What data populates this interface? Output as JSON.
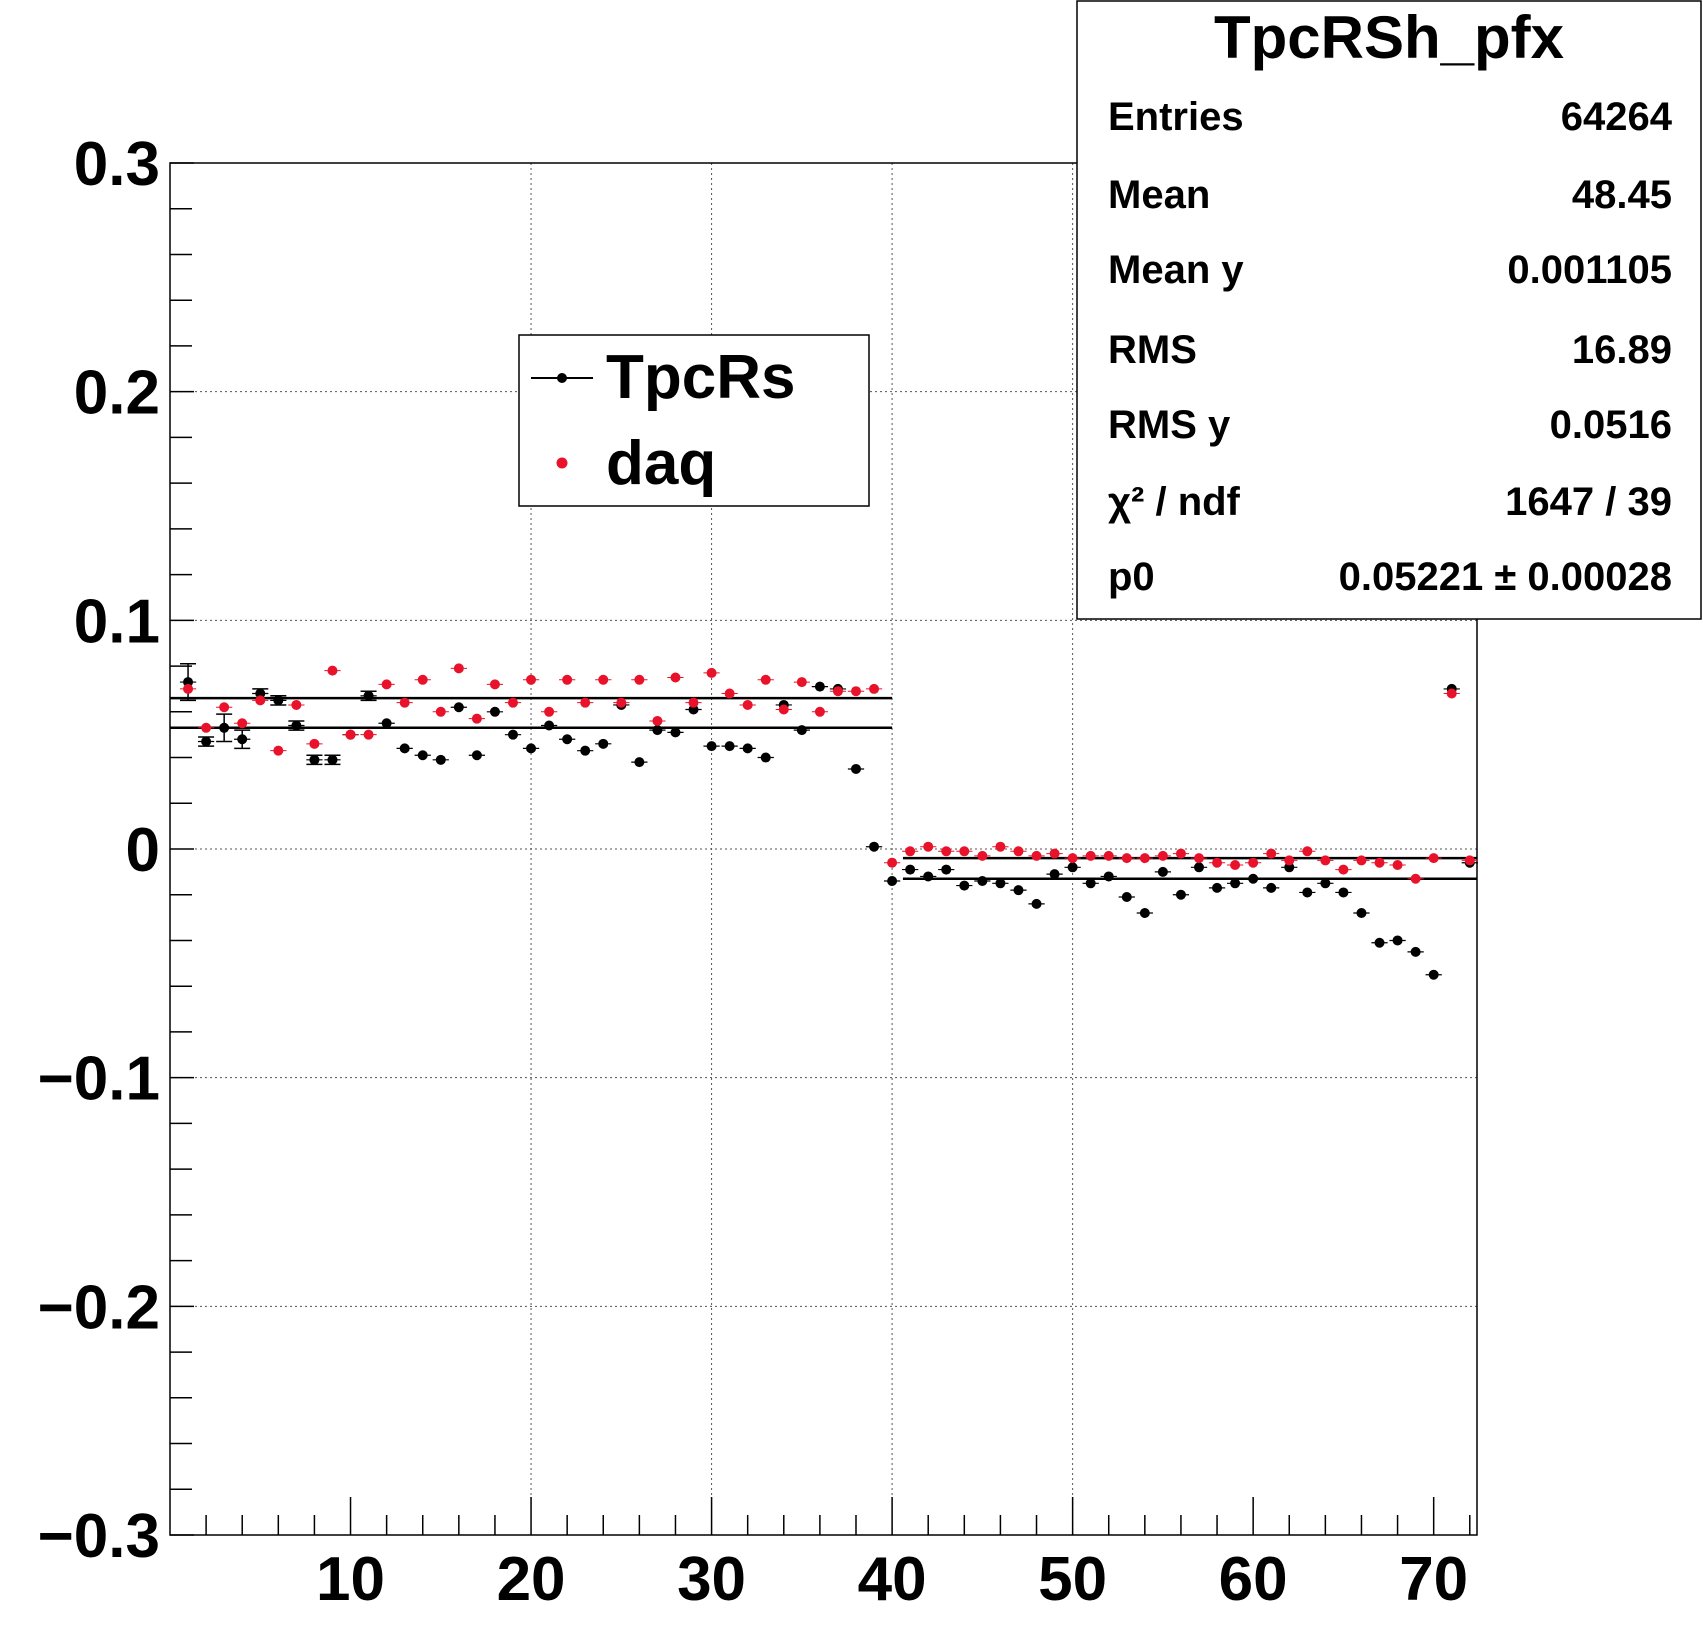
{
  "chart_data": {
    "type": "scatter",
    "title": "",
    "xlabel": "",
    "ylabel": "",
    "xlim": [
      0,
      72.4
    ],
    "ylim": [
      -0.3,
      0.3
    ],
    "grid": true,
    "x_tick_labels": [
      "10",
      "20",
      "30",
      "40",
      "50",
      "60",
      "70"
    ],
    "y_tick_labels": [
      "0.3",
      "0.2",
      "0.1",
      "0",
      "−0.1",
      "−0.2",
      "−0.3"
    ],
    "legend": {
      "placement": "top-center",
      "entries": [
        "TpcRs",
        "daq"
      ]
    },
    "stats": {
      "title": "TpcRSh_pfx",
      "rows": [
        {
          "label": "Entries",
          "value": "64264"
        },
        {
          "label": "Mean",
          "value": "48.45"
        },
        {
          "label": "Mean y",
          "value": "0.001105"
        },
        {
          "label": "RMS",
          "value": "16.89"
        },
        {
          "label": "RMS y",
          "value": "0.0516"
        },
        {
          "label": "χ² / ndf",
          "value": "1647 / 39"
        },
        {
          "label": "p0",
          "value": "0.05221 ± 0.00028"
        }
      ]
    },
    "series": [
      {
        "name": "TpcRs",
        "color": "#000000",
        "x": [
          1,
          2,
          3,
          4,
          5,
          6,
          7,
          8,
          9,
          10,
          11,
          12,
          13,
          14,
          15,
          16,
          17,
          18,
          19,
          20,
          21,
          22,
          23,
          24,
          25,
          26,
          27,
          28,
          29,
          30,
          31,
          32,
          33,
          34,
          35,
          36,
          37,
          38,
          39,
          40,
          41,
          42,
          43,
          44,
          45,
          46,
          47,
          48,
          49,
          50,
          51,
          52,
          53,
          54,
          55,
          56,
          57,
          58,
          59,
          60,
          61,
          62,
          63,
          64,
          65,
          66,
          67,
          68,
          69,
          70,
          71,
          72
        ],
        "y": [
          0.073,
          0.047,
          0.053,
          0.048,
          0.068,
          0.065,
          0.054,
          0.039,
          0.039,
          0.05,
          0.067,
          0.055,
          0.044,
          0.041,
          0.039,
          0.062,
          0.041,
          0.06,
          0.05,
          0.044,
          0.054,
          0.048,
          0.043,
          0.046,
          0.063,
          0.038,
          0.052,
          0.051,
          0.061,
          0.045,
          0.045,
          0.044,
          0.04,
          0.063,
          0.052,
          0.071,
          0.07,
          0.035,
          0.001,
          -0.014,
          -0.009,
          -0.012,
          -0.009,
          -0.016,
          -0.014,
          -0.015,
          -0.018,
          -0.024,
          -0.011,
          -0.008,
          -0.015,
          -0.012,
          -0.021,
          -0.028,
          -0.01,
          -0.02,
          -0.008,
          -0.017,
          -0.015,
          -0.013,
          -0.017,
          -0.008,
          -0.019,
          -0.015,
          -0.019,
          -0.028,
          -0.041,
          -0.04,
          -0.045,
          -0.055,
          0.07,
          -0.006
        ],
        "errors": [
          0.008,
          0.002,
          0.006,
          0.004,
          0.002,
          0.002,
          0.002,
          0.002,
          0.002,
          0.001,
          0.002,
          0.001,
          0.001,
          0.001,
          0.001,
          0.001,
          0.001,
          0.001,
          0.001,
          0.001,
          0.001,
          0.001,
          0.001,
          0.001,
          0.001,
          0.001,
          0.001,
          0.001,
          0.001,
          0.001,
          0.001,
          0.001,
          0.001,
          0.001,
          0.001,
          0.001,
          0.001,
          0.001,
          0.001,
          0.001,
          0.001,
          0.001,
          0.001,
          0.001,
          0.001,
          0.001,
          0.001,
          0.001,
          0.001,
          0.001,
          0.001,
          0.001,
          0.001,
          0.001,
          0.001,
          0.001,
          0.001,
          0.001,
          0.001,
          0.001,
          0.001,
          0.001,
          0.001,
          0.001,
          0.001,
          0.001,
          0.001,
          0.001,
          0.001,
          0.001,
          0.001,
          0.001
        ],
        "fit_lines": [
          {
            "x": [
              0,
              40
            ],
            "y": 0.053
          },
          {
            "x": [
              40.6,
              72.4
            ],
            "y": -0.013
          }
        ]
      },
      {
        "name": "daq",
        "color": "#e8132b",
        "x": [
          1,
          2,
          3,
          4,
          5,
          6,
          7,
          8,
          9,
          10,
          11,
          12,
          13,
          14,
          15,
          16,
          17,
          18,
          19,
          20,
          21,
          22,
          23,
          24,
          25,
          26,
          27,
          28,
          29,
          30,
          31,
          32,
          33,
          34,
          35,
          36,
          37,
          38,
          39,
          40,
          41,
          42,
          43,
          44,
          45,
          46,
          47,
          48,
          49,
          50,
          51,
          52,
          53,
          54,
          55,
          56,
          57,
          58,
          59,
          60,
          61,
          62,
          63,
          64,
          65,
          66,
          67,
          68,
          69,
          70,
          71,
          72
        ],
        "y": [
          0.07,
          0.053,
          0.062,
          0.055,
          0.065,
          0.043,
          0.063,
          0.046,
          0.078,
          0.05,
          0.05,
          0.072,
          0.064,
          0.074,
          0.06,
          0.079,
          0.057,
          0.072,
          0.064,
          0.074,
          0.06,
          0.074,
          0.064,
          0.074,
          0.064,
          0.074,
          0.056,
          0.075,
          0.064,
          0.077,
          0.068,
          0.063,
          0.074,
          0.061,
          0.073,
          0.06,
          0.069,
          0.069,
          0.07,
          -0.006,
          -0.001,
          0.001,
          -0.001,
          -0.001,
          -0.003,
          0.001,
          -0.001,
          -0.003,
          -0.002,
          -0.004,
          -0.003,
          -0.003,
          -0.004,
          -0.004,
          -0.003,
          -0.002,
          -0.004,
          -0.006,
          -0.007,
          -0.006,
          -0.002,
          -0.005,
          -0.001,
          -0.005,
          -0.009,
          -0.005,
          -0.006,
          -0.007,
          -0.013,
          -0.004,
          0.068,
          -0.005
        ],
        "fit_lines": [
          {
            "x": [
              0,
              40
            ],
            "y": 0.066
          },
          {
            "x": [
              40.6,
              72.4
            ],
            "y": -0.004
          }
        ]
      }
    ]
  }
}
